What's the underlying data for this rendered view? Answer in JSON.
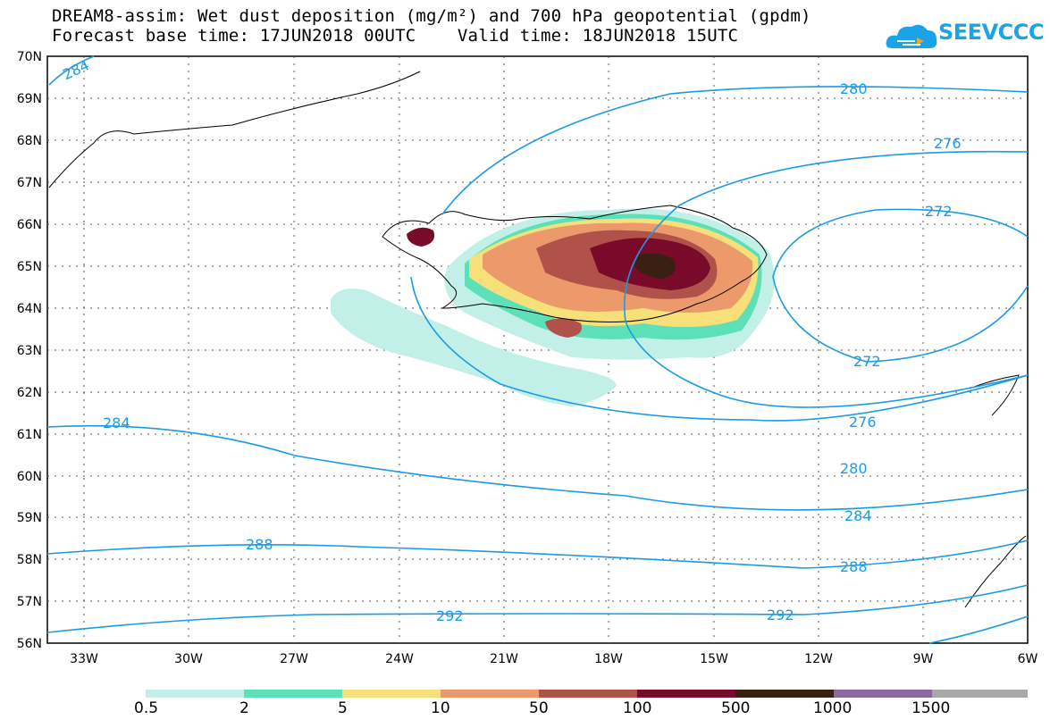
{
  "title": {
    "line1": "DREAM8-assim: Wet dust deposition (mg/m²) and 700 hPa geopotential (gpdm)",
    "line2": "Forecast base time: 17JUN2018 00UTC    Valid time: 18JUN2018 15UTC"
  },
  "logo": {
    "text": "SEEVCCC",
    "icon": "cloud-logo-icon"
  },
  "map": {
    "lat_labels": [
      "70N",
      "69N",
      "68N",
      "67N",
      "66N",
      "65N",
      "64N",
      "63N",
      "62N",
      "61N",
      "60N",
      "59N",
      "58N",
      "57N",
      "56N"
    ],
    "lon_labels": [
      "33W",
      "30W",
      "27W",
      "24W",
      "21W",
      "18W",
      "15W",
      "12W",
      "9W",
      "6W"
    ],
    "contour_labels": [
      "284",
      "280",
      "276",
      "272",
      "272",
      "276",
      "280",
      "284",
      "284",
      "288",
      "288",
      "292",
      "292"
    ],
    "colors": {
      "contour": "#1a9be6",
      "frame": "#000000"
    }
  },
  "colorbar": {
    "labels": [
      "0.5",
      "2",
      "5",
      "10",
      "50",
      "100",
      "500",
      "1000",
      "1500"
    ],
    "colors": [
      "#c2f0e8",
      "#5de0b8",
      "#f7e07a",
      "#ec9a6c",
      "#b0524a",
      "#7a0a2a",
      "#3a2010",
      "#8c68a0",
      "#a8a8a8"
    ]
  }
}
